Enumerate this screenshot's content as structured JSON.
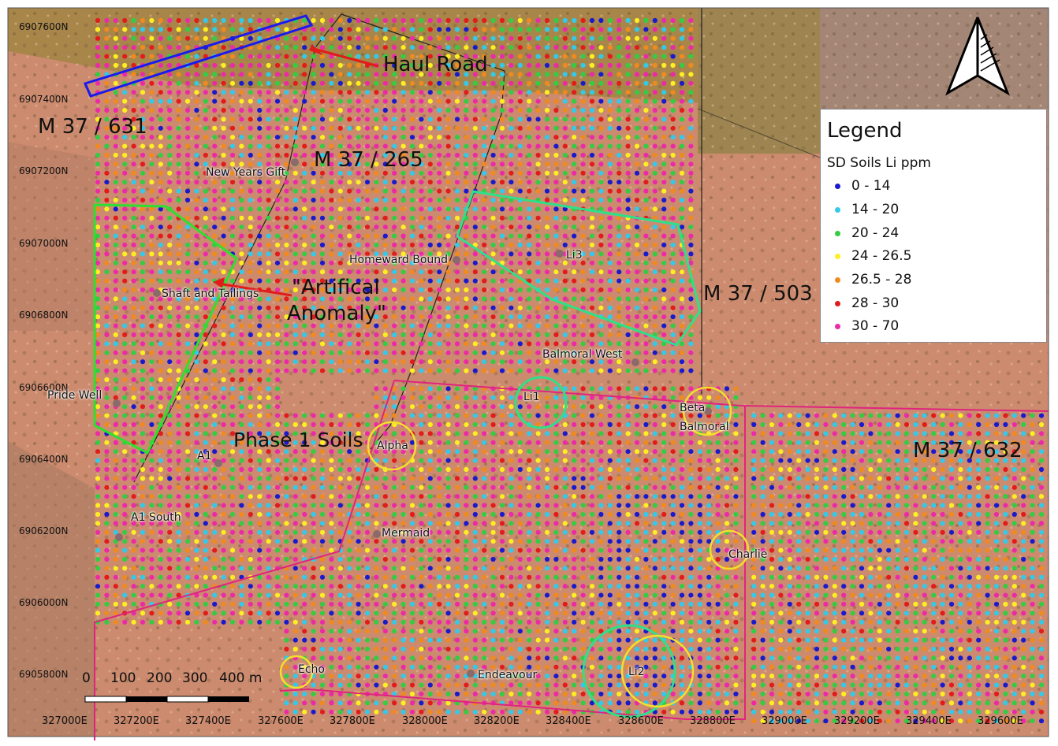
{
  "legend": {
    "title": "Legend",
    "subtitle": "SD Soils Li ppm",
    "classes": [
      {
        "label": "0 - 14",
        "color": "#1a1acc"
      },
      {
        "label": "14 - 20",
        "color": "#33c9e8"
      },
      {
        "label": "20 - 24",
        "color": "#33cc44"
      },
      {
        "label": "24 - 26.5",
        "color": "#ffee22"
      },
      {
        "label": "26.5 - 28",
        "color": "#ef8a1f"
      },
      {
        "label": "28 - 30",
        "color": "#e21b1b"
      },
      {
        "label": "30 - 70",
        "color": "#ec2aa8"
      }
    ]
  },
  "axes": {
    "northings": [
      "6907600N",
      "6907400N",
      "6907200N",
      "6907000N",
      "6906800N",
      "6906600N",
      "6906400N",
      "6906200N",
      "6906000N",
      "6905800N"
    ],
    "eastings": [
      "327000E",
      "327200E",
      "327400E",
      "327600E",
      "327800E",
      "328000E",
      "328200E",
      "328400E",
      "328600E",
      "328800E",
      "329000E",
      "329200E",
      "329400E",
      "329600E"
    ]
  },
  "tenements": {
    "m37_631": "M 37 / 631",
    "m37_265": "M 37 / 265",
    "m37_503": "M 37 / 503",
    "m37_632": "M 37 / 632"
  },
  "annotations": {
    "haul_road": "Haul Road",
    "artificial_anomaly_line1": "\"Artifical",
    "artificial_anomaly_line2": "Anomaly\"",
    "phase1_soils": "Phase 1 Soils"
  },
  "places": {
    "new_years_gift": "New Years Gift",
    "homeward_bound": "Homeward Bound",
    "shaft_tailings": "Shaft and Tailings",
    "pride_well": "Pride Well",
    "a1": "A1",
    "a1_south": "A1 South",
    "balmoral_west": "Balmoral West",
    "li3": "Li3",
    "li1": "Li1",
    "li2": "Li2",
    "alpha": "Alpha",
    "beta": "Beta",
    "balmoral": "Balmoral",
    "mermaid": "Mermaid",
    "charlie": "Charlie",
    "echo": "Echo",
    "endeavour": "Endeavour"
  },
  "scale_bar": {
    "labels": [
      "0",
      "100",
      "200",
      "300",
      "400 m"
    ]
  },
  "north_arrow": {
    "icon": "north-arrow-icon"
  }
}
